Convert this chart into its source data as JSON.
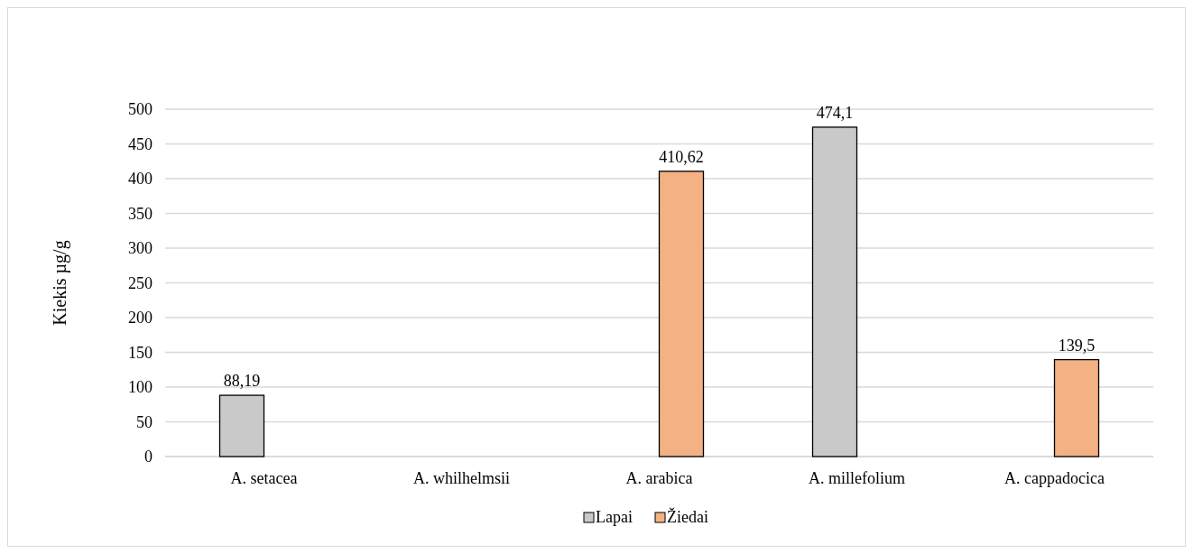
{
  "chart_data": {
    "type": "bar",
    "ylabel": "Kiekis µg/g",
    "categories": [
      "A. setacea",
      "A. whilhelmsii",
      "A. arabica",
      "A. millefolium",
      "A. cappadocica"
    ],
    "series": [
      {
        "name": "Lapai",
        "color": "#c9c9c9",
        "values": [
          88.19,
          null,
          null,
          474.1,
          null
        ],
        "value_labels": [
          "88,19",
          null,
          null,
          "474,1",
          null
        ]
      },
      {
        "name": "Žiedai",
        "color": "#f4b183",
        "values": [
          null,
          null,
          410.62,
          null,
          139.5
        ],
        "value_labels": [
          null,
          null,
          "410,62",
          null,
          "139,5"
        ]
      }
    ],
    "ylim": [
      0,
      500
    ],
    "yticks": [
      0,
      50,
      100,
      150,
      200,
      250,
      300,
      350,
      400,
      450,
      500
    ],
    "grid": "y",
    "legend": "bottom"
  }
}
